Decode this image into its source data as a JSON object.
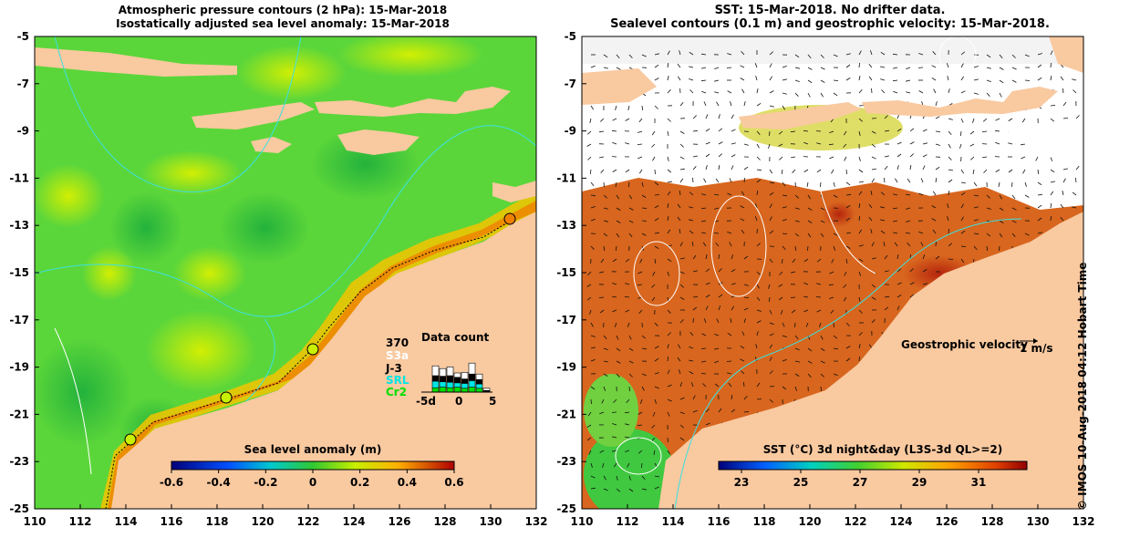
{
  "left_panel": {
    "title_line1": "Atmospheric pressure contours (2 hPa): 15-Mar-2018",
    "title_line2": "Isostatically adjusted sea level anomaly: 15-Mar-2018",
    "colorbar_label": "Sea level anomaly (m)",
    "colorbar_ticks": [
      "-0.6",
      "-0.4",
      "-0.2",
      "0",
      "0.2",
      "0.4",
      "0.6"
    ],
    "data_count": {
      "title": "Data count",
      "total": "370",
      "missions": [
        {
          "name": "S3a",
          "color": "#ffffff"
        },
        {
          "name": "J-3",
          "color": "#000000"
        },
        {
          "name": "SRL",
          "color": "#00e5e5"
        },
        {
          "name": "Cr2",
          "color": "#00e000"
        }
      ],
      "axis_ticks": [
        "-5d",
        "0",
        "5"
      ]
    }
  },
  "right_panel": {
    "title_line1": "SST: 15-Mar-2018. No drifter data.",
    "title_line2": "Sealevel contours (0.1 m) and geostrophic velocity: 15-Mar-2018.",
    "velocity_label": "Geostrophic velocity",
    "velocity_scale": "1 m/s",
    "colorbar_label": "SST (°C) 3d night&day (L3S-3d QL>=2)",
    "colorbar_ticks": [
      "23",
      "25",
      "27",
      "29",
      "31"
    ]
  },
  "axes": {
    "x_ticks": [
      "110",
      "112",
      "114",
      "116",
      "118",
      "120",
      "122",
      "124",
      "126",
      "128",
      "130",
      "132"
    ],
    "y_ticks": [
      "-5",
      "-7",
      "-9",
      "-11",
      "-13",
      "-15",
      "-17",
      "-19",
      "-21",
      "-23",
      "-25"
    ]
  },
  "side_note": "© IMOS 10-Aug-2018 04:12 Hobart Time",
  "colors": {
    "land": "#f9c9a0",
    "ocean_green": "#5bd63a",
    "sst_orange": "#d8661e"
  }
}
